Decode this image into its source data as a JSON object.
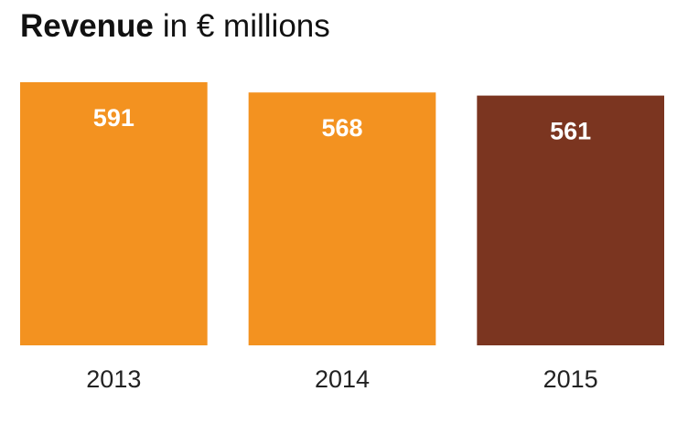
{
  "chart_data": {
    "type": "bar",
    "title": "Revenue",
    "subtitle": "in € millions",
    "categories": [
      "2013",
      "2014",
      "2015"
    ],
    "values": [
      591,
      568,
      561
    ],
    "colors": [
      "#f39220",
      "#f39220",
      "#7b3520"
    ]
  }
}
